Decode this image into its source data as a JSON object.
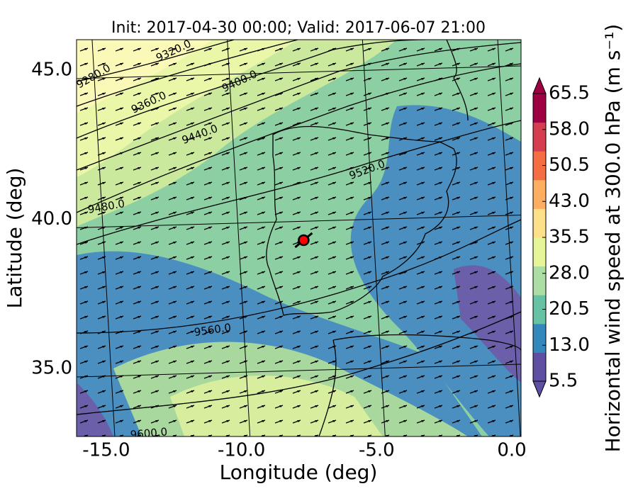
{
  "chart_data": {
    "type": "contour-map",
    "title": "Init: 2017-04-30 00:00; Valid: 2017-06-07 21:00",
    "xlabel": "Longitude (deg)",
    "ylabel": "Latitude (deg)",
    "xlim": [
      -16.1,
      0.34
    ],
    "ylim": [
      32.72,
      46.02
    ],
    "xticks": [
      {
        "value": -15,
        "label": "-15.0"
      },
      {
        "value": -10,
        "label": "-10.0"
      },
      {
        "value": -5,
        "label": "-5.0"
      },
      {
        "value": 0,
        "label": "0.0"
      }
    ],
    "yticks": [
      {
        "value": 35,
        "label": "35.0"
      },
      {
        "value": 40,
        "label": "40.0"
      },
      {
        "value": 45,
        "label": "45.0"
      }
    ],
    "grid": true,
    "contour_labels": [
      "9280.0",
      "9320.0",
      "9360.0",
      "9400.0",
      "9440.0",
      "9480.0",
      "9520.0",
      "9560.0",
      "9600.0"
    ],
    "marker": {
      "lon": -7.7,
      "lat": 39.3,
      "color": "#ff0000"
    },
    "colorbar": {
      "label": "Horizontal wind speed at 300.0 hPa (m s⁻¹)",
      "lim": [
        5.5,
        65.5
      ],
      "ticks": [
        5.5,
        {
          "value": 13,
          "label": "13.0"
        },
        20.5,
        {
          "value": 28,
          "label": "28.0"
        },
        35.5,
        {
          "value": 43,
          "label": "43.0"
        },
        50.5,
        {
          "value": 58,
          "label": "58.0"
        },
        65.5
      ],
      "colors": [
        "#5e4fa2",
        "#3288bd",
        "#66c2a5",
        "#abdda4",
        "#e6f598",
        "#fee08b",
        "#fdae61",
        "#f46d43",
        "#d53e4f",
        "#9e0142"
      ]
    }
  }
}
